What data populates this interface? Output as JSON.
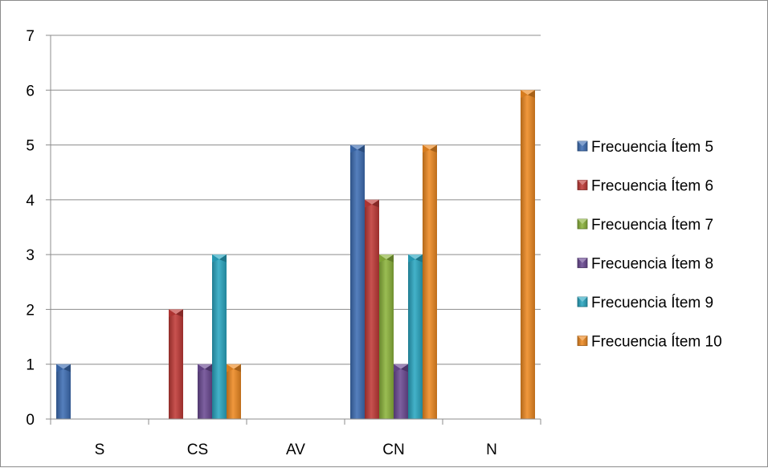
{
  "chart_data": {
    "type": "bar",
    "title": "",
    "xlabel": "",
    "ylabel": "",
    "categories": [
      "S",
      "CS",
      "AV",
      "CN",
      "N"
    ],
    "ylim": [
      0,
      7
    ],
    "yticks": [
      "0",
      "1",
      "2",
      "3",
      "4",
      "5",
      "6",
      "7"
    ],
    "grid": true,
    "legend_position": "right",
    "series": [
      {
        "name": "Frecuencia Ítem 5",
        "color": "#3e6eb4",
        "values": [
          1,
          0,
          0,
          5,
          0
        ]
      },
      {
        "name": "Frecuencia Ítem 6",
        "color": "#c03a37",
        "values": [
          0,
          2,
          0,
          4,
          0
        ]
      },
      {
        "name": "Frecuencia Ítem 7",
        "color": "#8cb43c",
        "values": [
          0,
          0,
          0,
          3,
          0
        ]
      },
      {
        "name": "Frecuencia Ítem 8",
        "color": "#6b4a93",
        "values": [
          0,
          1,
          0,
          1,
          0
        ]
      },
      {
        "name": "Frecuencia Ítem 9",
        "color": "#2aa7c2",
        "values": [
          0,
          3,
          0,
          3,
          0
        ]
      },
      {
        "name": "Frecuencia Ítem 10",
        "color": "#ee8a22",
        "values": [
          0,
          1,
          0,
          5,
          6
        ]
      }
    ]
  }
}
